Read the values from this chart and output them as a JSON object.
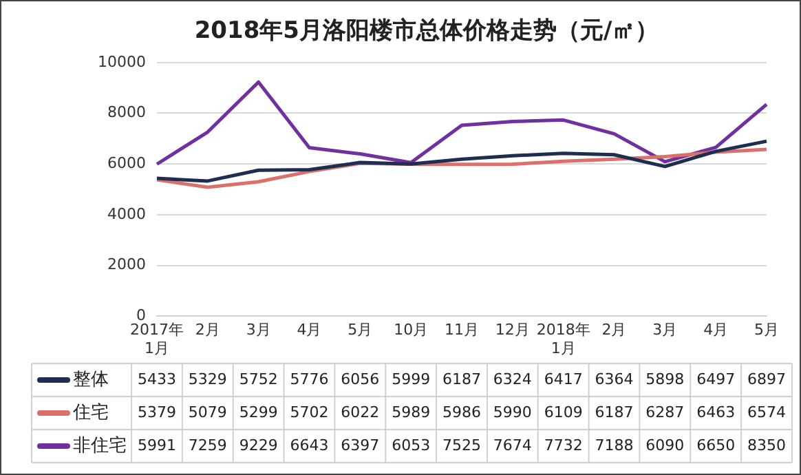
{
  "chart_data": {
    "type": "line",
    "title": "2018年5月洛阳楼市总体价格走势（元/㎡）",
    "categories": [
      "2017年1月",
      "2月",
      "3月",
      "4月",
      "5月",
      "10月",
      "11月",
      "12月",
      "2018年1月",
      "2月",
      "3月",
      "4月",
      "5月"
    ],
    "series": [
      {
        "name": "整体",
        "color": "#1f2d50",
        "values": [
          5433,
          5329,
          5752,
          5776,
          6056,
          5999,
          6187,
          6324,
          6417,
          6364,
          5898,
          6497,
          6897
        ]
      },
      {
        "name": "住宅",
        "color": "#d9706a",
        "values": [
          5379,
          5079,
          5299,
          5702,
          6022,
          5989,
          5986,
          5990,
          6109,
          6187,
          6287,
          6463,
          6574
        ]
      },
      {
        "name": "非住宅",
        "color": "#7030a0",
        "values": [
          5991,
          7259,
          9229,
          6643,
          6397,
          6053,
          7525,
          7674,
          7732,
          7188,
          6090,
          6650,
          8350
        ]
      }
    ],
    "ylim": [
      0,
      10000
    ],
    "yticks": [
      0,
      2000,
      4000,
      6000,
      8000,
      10000
    ],
    "grid": "y",
    "legend": "bottom",
    "marker": "none",
    "line_style": "solid",
    "data_labels": true
  }
}
